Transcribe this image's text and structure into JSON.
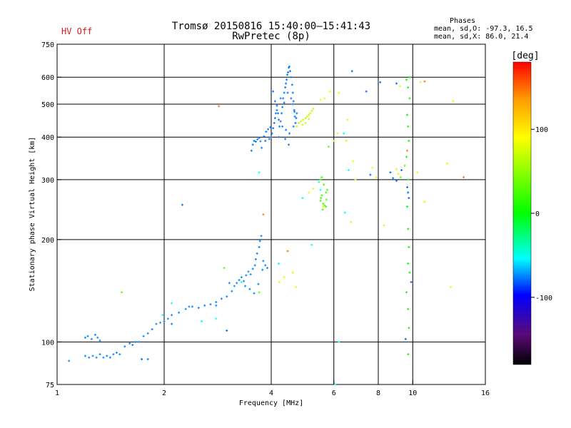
{
  "status": {
    "hv": "HV Off"
  },
  "header": {
    "title_line1": "Tromsø 20150816 15:40:00–15:41:43",
    "title_line2": "RwPretec (8p)"
  },
  "phases_box": {
    "title": "Phases",
    "line1": "mean, sd,O: -97.3, 16.5",
    "line2": "mean, sd,X: 86.0, 21.4"
  },
  "colorbar": {
    "unit_label": "[deg]",
    "ticks": [
      {
        "value": 100,
        "label": "100"
      },
      {
        "value": 0,
        "label": "0"
      },
      {
        "value": -100,
        "label": "-100"
      }
    ],
    "range": [
      -180,
      180
    ],
    "colors": {
      "top": "#ff0000",
      "orange": "#ff9900",
      "yellow": "#ffff00",
      "green": "#00ff00",
      "cyan": "#00ffff",
      "blue": "#0000ff",
      "purple": "#5a0a7a",
      "bottom": "#000000"
    }
  },
  "chart_data": {
    "type": "scatter",
    "xlabel": "Frequency [MHz]",
    "ylabel": "Stationary phase Virtual Height [km]",
    "xscale": "log",
    "yscale": "log",
    "xlim": [
      1,
      16
    ],
    "ylim": [
      75,
      750
    ],
    "x_ticks": [
      1,
      2,
      4,
      6,
      8,
      10,
      16
    ],
    "x_tick_labels": [
      "1",
      "2",
      "4",
      "6",
      "8",
      "10",
      "16"
    ],
    "x_grid": [
      2,
      4,
      6,
      8,
      10
    ],
    "y_ticks": [
      75,
      100,
      200,
      300,
      400,
      500,
      600,
      750
    ],
    "y_tick_labels": [
      "75",
      "100",
      "200",
      "300",
      "400",
      "500",
      "600",
      "750"
    ],
    "y_grid": [
      100,
      200,
      300,
      400,
      500,
      600
    ],
    "grid": true,
    "traces": [
      {
        "name": "",
        "phase_deg": -110,
        "points": [
          [
            1.08,
            88
          ],
          [
            1.2,
            103
          ],
          [
            1.22,
            104
          ],
          [
            1.25,
            102
          ],
          [
            1.28,
            105
          ],
          [
            1.3,
            103
          ],
          [
            1.32,
            101
          ],
          [
            1.2,
            91
          ],
          [
            1.23,
            90
          ],
          [
            1.26,
            91
          ],
          [
            1.29,
            90
          ],
          [
            1.32,
            92
          ],
          [
            1.35,
            90
          ],
          [
            1.38,
            91
          ],
          [
            1.41,
            90
          ],
          [
            1.44,
            92
          ],
          [
            1.47,
            93
          ],
          [
            1.5,
            92
          ],
          [
            1.55,
            97
          ],
          [
            1.6,
            99
          ],
          [
            1.63,
            98
          ],
          [
            1.66,
            100
          ],
          [
            1.7,
            100
          ],
          [
            1.75,
            104
          ],
          [
            1.8,
            106
          ],
          [
            1.85,
            109
          ],
          [
            1.9,
            113
          ],
          [
            1.95,
            114
          ],
          [
            2.0,
            115
          ],
          [
            2.05,
            117
          ],
          [
            2.1,
            120
          ],
          [
            2.2,
            122
          ],
          [
            2.3,
            125
          ],
          [
            2.4,
            127
          ],
          [
            2.5,
            126
          ],
          [
            2.6,
            128
          ],
          [
            2.7,
            129
          ],
          [
            2.8,
            131
          ],
          [
            2.9,
            134
          ],
          [
            3.0,
            136
          ],
          [
            3.1,
            141
          ],
          [
            3.15,
            146
          ],
          [
            3.2,
            149
          ],
          [
            3.25,
            152
          ],
          [
            3.3,
            155
          ],
          [
            3.35,
            151
          ],
          [
            3.4,
            157
          ],
          [
            3.45,
            161
          ],
          [
            3.5,
            158
          ],
          [
            3.55,
            164
          ],
          [
            3.6,
            168
          ],
          [
            3.62,
            175
          ],
          [
            3.65,
            182
          ],
          [
            3.7,
            190
          ],
          [
            3.72,
            198
          ],
          [
            3.75,
            205
          ],
          [
            3.8,
            173
          ],
          [
            3.85,
            168
          ],
          [
            3.9,
            165
          ],
          [
            1.8,
            89
          ],
          [
            2.1,
            113
          ],
          [
            2.35,
            127
          ],
          [
            2.8,
            128
          ],
          [
            3.05,
            149
          ],
          [
            3.38,
            146
          ],
          [
            3.48,
            143
          ],
          [
            3.58,
            139
          ],
          [
            3.68,
            148
          ],
          [
            3.78,
            163
          ]
        ]
      },
      {
        "name": "",
        "phase_deg": -115,
        "points": [
          [
            3.52,
            365
          ],
          [
            3.55,
            380
          ],
          [
            3.58,
            390
          ],
          [
            3.62,
            388
          ],
          [
            3.66,
            394
          ],
          [
            3.7,
            398
          ],
          [
            3.73,
            389
          ],
          [
            3.76,
            372
          ],
          [
            3.82,
            402
          ],
          [
            3.87,
            415
          ],
          [
            3.92,
            422
          ],
          [
            3.98,
            428
          ],
          [
            4.02,
            410
          ],
          [
            4.05,
            425
          ],
          [
            4.08,
            440
          ],
          [
            4.1,
            455
          ],
          [
            4.12,
            470
          ],
          [
            4.15,
            480
          ],
          [
            4.18,
            470
          ],
          [
            4.2,
            450
          ],
          [
            4.22,
            430
          ],
          [
            4.25,
            445
          ],
          [
            4.28,
            470
          ],
          [
            4.3,
            490
          ],
          [
            4.32,
            520
          ],
          [
            4.35,
            540
          ],
          [
            4.38,
            560
          ],
          [
            4.4,
            575
          ],
          [
            4.42,
            590
          ],
          [
            4.44,
            610
          ],
          [
            4.46,
            620
          ],
          [
            4.48,
            640
          ],
          [
            4.5,
            645
          ],
          [
            4.52,
            625
          ],
          [
            4.55,
            600
          ],
          [
            4.58,
            570
          ],
          [
            4.6,
            540
          ],
          [
            4.62,
            510
          ],
          [
            4.64,
            480
          ],
          [
            4.66,
            460
          ],
          [
            4.68,
            440
          ],
          [
            4.7,
            455
          ],
          [
            4.72,
            470
          ],
          [
            4.05,
            545
          ],
          [
            4.1,
            510
          ],
          [
            4.15,
            495
          ],
          [
            4.25,
            520
          ],
          [
            4.35,
            505
          ],
          [
            4.45,
            540
          ],
          [
            4.55,
            520
          ],
          [
            4.6,
            500
          ],
          [
            4.65,
            475
          ],
          [
            4.3,
            430
          ],
          [
            4.4,
            420
          ],
          [
            4.5,
            410
          ],
          [
            4.0,
            400
          ],
          [
            3.95,
            395
          ],
          [
            3.85,
            390
          ],
          [
            4.2,
            400
          ],
          [
            4.38,
            395
          ],
          [
            4.48,
            380
          ],
          [
            4.62,
            430
          ]
        ]
      },
      {
        "name": "",
        "phase_deg": 75,
        "points": [
          [
            4.72,
            430
          ],
          [
            4.78,
            440
          ],
          [
            4.85,
            445
          ],
          [
            4.92,
            450
          ],
          [
            5.0,
            455
          ],
          [
            5.05,
            460
          ],
          [
            5.1,
            465
          ],
          [
            5.15,
            470
          ],
          [
            5.2,
            478
          ],
          [
            5.25,
            485
          ],
          [
            4.9,
            435
          ],
          [
            5.0,
            440
          ],
          [
            5.1,
            452
          ]
        ]
      },
      {
        "name": "",
        "phase_deg": 35,
        "points": [
          [
            5.5,
            260
          ],
          [
            5.52,
            265
          ],
          [
            5.55,
            270
          ],
          [
            5.6,
            255
          ],
          [
            5.65,
            252
          ],
          [
            5.7,
            250
          ],
          [
            5.72,
            262
          ],
          [
            5.58,
            245
          ],
          [
            5.5,
            300
          ],
          [
            5.55,
            305
          ],
          [
            5.62,
            290
          ],
          [
            5.7,
            275
          ],
          [
            5.75,
            280
          ]
        ]
      },
      {
        "name": "",
        "phase_deg": 15,
        "points": [
          [
            9.6,
            590
          ],
          [
            9.7,
            560
          ],
          [
            9.8,
            520
          ],
          [
            9.7,
            430
          ],
          [
            9.75,
            390
          ],
          [
            9.6,
            350
          ],
          [
            9.7,
            300
          ],
          [
            9.65,
            250
          ],
          [
            9.7,
            215
          ],
          [
            9.75,
            190
          ],
          [
            9.7,
            170
          ],
          [
            9.8,
            160
          ],
          [
            9.6,
            140
          ],
          [
            9.7,
            125
          ],
          [
            9.75,
            110
          ],
          [
            9.7,
            92
          ],
          [
            9.8,
            600
          ],
          [
            9.65,
            465
          ]
        ]
      },
      {
        "name": "",
        "phase_deg": 85,
        "points": [
          [
            5.5,
            515
          ],
          [
            5.65,
            520
          ],
          [
            5.85,
            545
          ],
          [
            6.2,
            540
          ],
          [
            6.55,
            450
          ],
          [
            6.0,
            390
          ],
          [
            6.15,
            410
          ],
          [
            5.1,
            275
          ],
          [
            5.25,
            282
          ],
          [
            6.5,
            390
          ],
          [
            6.8,
            340
          ],
          [
            7.7,
            325
          ],
          [
            9.2,
            565
          ],
          [
            10.5,
            580
          ],
          [
            13.0,
            510
          ],
          [
            12.5,
            335
          ],
          [
            12.8,
            145
          ],
          [
            10.8,
            258
          ],
          [
            7.9,
            305
          ],
          [
            9.1,
            312
          ],
          [
            9.0,
            322
          ],
          [
            8.3,
            220
          ],
          [
            5.6,
            250
          ],
          [
            6.7,
            225
          ],
          [
            4.22,
            150
          ],
          [
            4.35,
            155
          ],
          [
            4.6,
            160
          ],
          [
            4.7,
            145
          ],
          [
            6.9,
            300
          ],
          [
            10.3,
            315
          ]
        ]
      },
      {
        "name": "",
        "phase_deg": -70,
        "points": [
          [
            3.7,
            315
          ],
          [
            4.9,
            265
          ],
          [
            6.4,
            410
          ],
          [
            6.6,
            320
          ],
          [
            6.45,
            240
          ],
          [
            5.5,
            280
          ],
          [
            5.45,
            295
          ],
          [
            6.2,
            100
          ],
          [
            6.05,
            75
          ],
          [
            5.2,
            193
          ],
          [
            2.8,
            117
          ],
          [
            3.3,
            150
          ],
          [
            2.1,
            130
          ],
          [
            2.55,
            115
          ],
          [
            1.98,
            120
          ],
          [
            4.2,
            170
          ]
        ]
      },
      {
        "name": "",
        "phase_deg": -120,
        "points": [
          [
            2.25,
            253
          ],
          [
            3.0,
            108
          ],
          [
            1.73,
            89
          ],
          [
            6.75,
            625
          ],
          [
            8.1,
            580
          ],
          [
            9.0,
            575
          ],
          [
            7.4,
            545
          ],
          [
            7.6,
            310
          ],
          [
            8.65,
            315
          ],
          [
            8.8,
            303
          ],
          [
            9.0,
            298
          ],
          [
            9.3,
            320
          ],
          [
            9.65,
            285
          ],
          [
            9.7,
            275
          ],
          [
            9.75,
            265
          ],
          [
            9.55,
            102
          ],
          [
            9.9,
            150
          ]
        ]
      },
      {
        "name": "",
        "phase_deg": 140,
        "points": [
          [
            2.85,
            493
          ],
          [
            3.8,
            237
          ],
          [
            4.45,
            185
          ],
          [
            10.8,
            583
          ],
          [
            13.9,
            305
          ],
          [
            9.65,
            365
          ]
        ]
      },
      {
        "name": "",
        "phase_deg": 45,
        "points": [
          [
            1.52,
            140
          ],
          [
            2.95,
            165
          ],
          [
            3.7,
            140
          ],
          [
            5.8,
            375
          ],
          [
            9.5,
            330
          ],
          [
            9.25,
            305
          ]
        ]
      }
    ]
  }
}
